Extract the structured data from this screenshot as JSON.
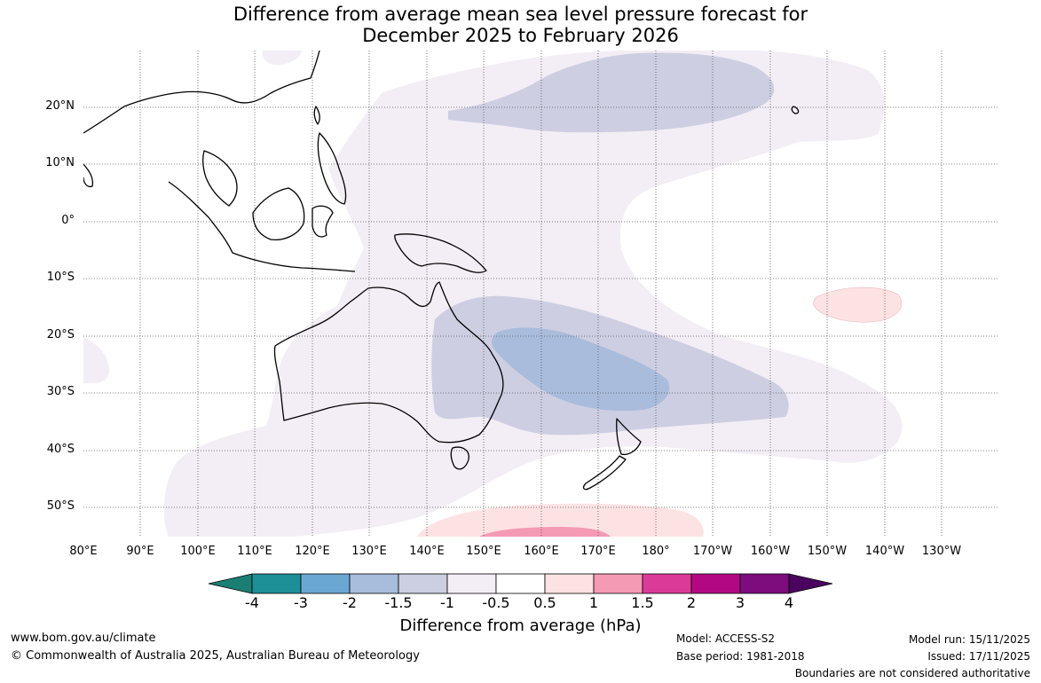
{
  "title": {
    "line1": "Difference from average mean sea level pressure forecast for",
    "line2": "December 2025 to February 2026"
  },
  "map": {
    "lat_labels": [
      "20°N",
      "10°N",
      "0°",
      "10°S",
      "20°S",
      "30°S",
      "40°S",
      "50°S"
    ],
    "lon_labels": [
      "80°E",
      "90°E",
      "100°E",
      "110°E",
      "120°E",
      "130°E",
      "140°E",
      "150°E",
      "160°E",
      "170°E",
      "180°",
      "170°W",
      "160°W",
      "150°W",
      "140°W",
      "130°W"
    ]
  },
  "colorbar": {
    "ticks": [
      "-4",
      "-3",
      "-2",
      "-1.5",
      "-1",
      "-0.5",
      "0.5",
      "1",
      "1.5",
      "2",
      "3",
      "4"
    ],
    "colors": [
      "#1a7f72",
      "#1d8f96",
      "#6aa8d3",
      "#a8bcdc",
      "#ccceE2",
      "#f3edf5",
      "#ffffff",
      "#fde2e4",
      "#f59ab5",
      "#dc3a98",
      "#b30883",
      "#7d0c7d",
      "#4a045f"
    ],
    "label": "Difference from average (hPa)"
  },
  "footer": {
    "website": "www.bom.gov.au/climate",
    "copyright": "© Commonwealth of Australia 2025, Australian Bureau of Meteorology",
    "model": "Model: ACCESS-S2",
    "base_period": "Base period: 1981-2018",
    "model_run": "Model run: 15/11/2025",
    "issued": "Issued: 17/11/2025",
    "disclaimer": "Boundaries are not considered authoritative"
  }
}
